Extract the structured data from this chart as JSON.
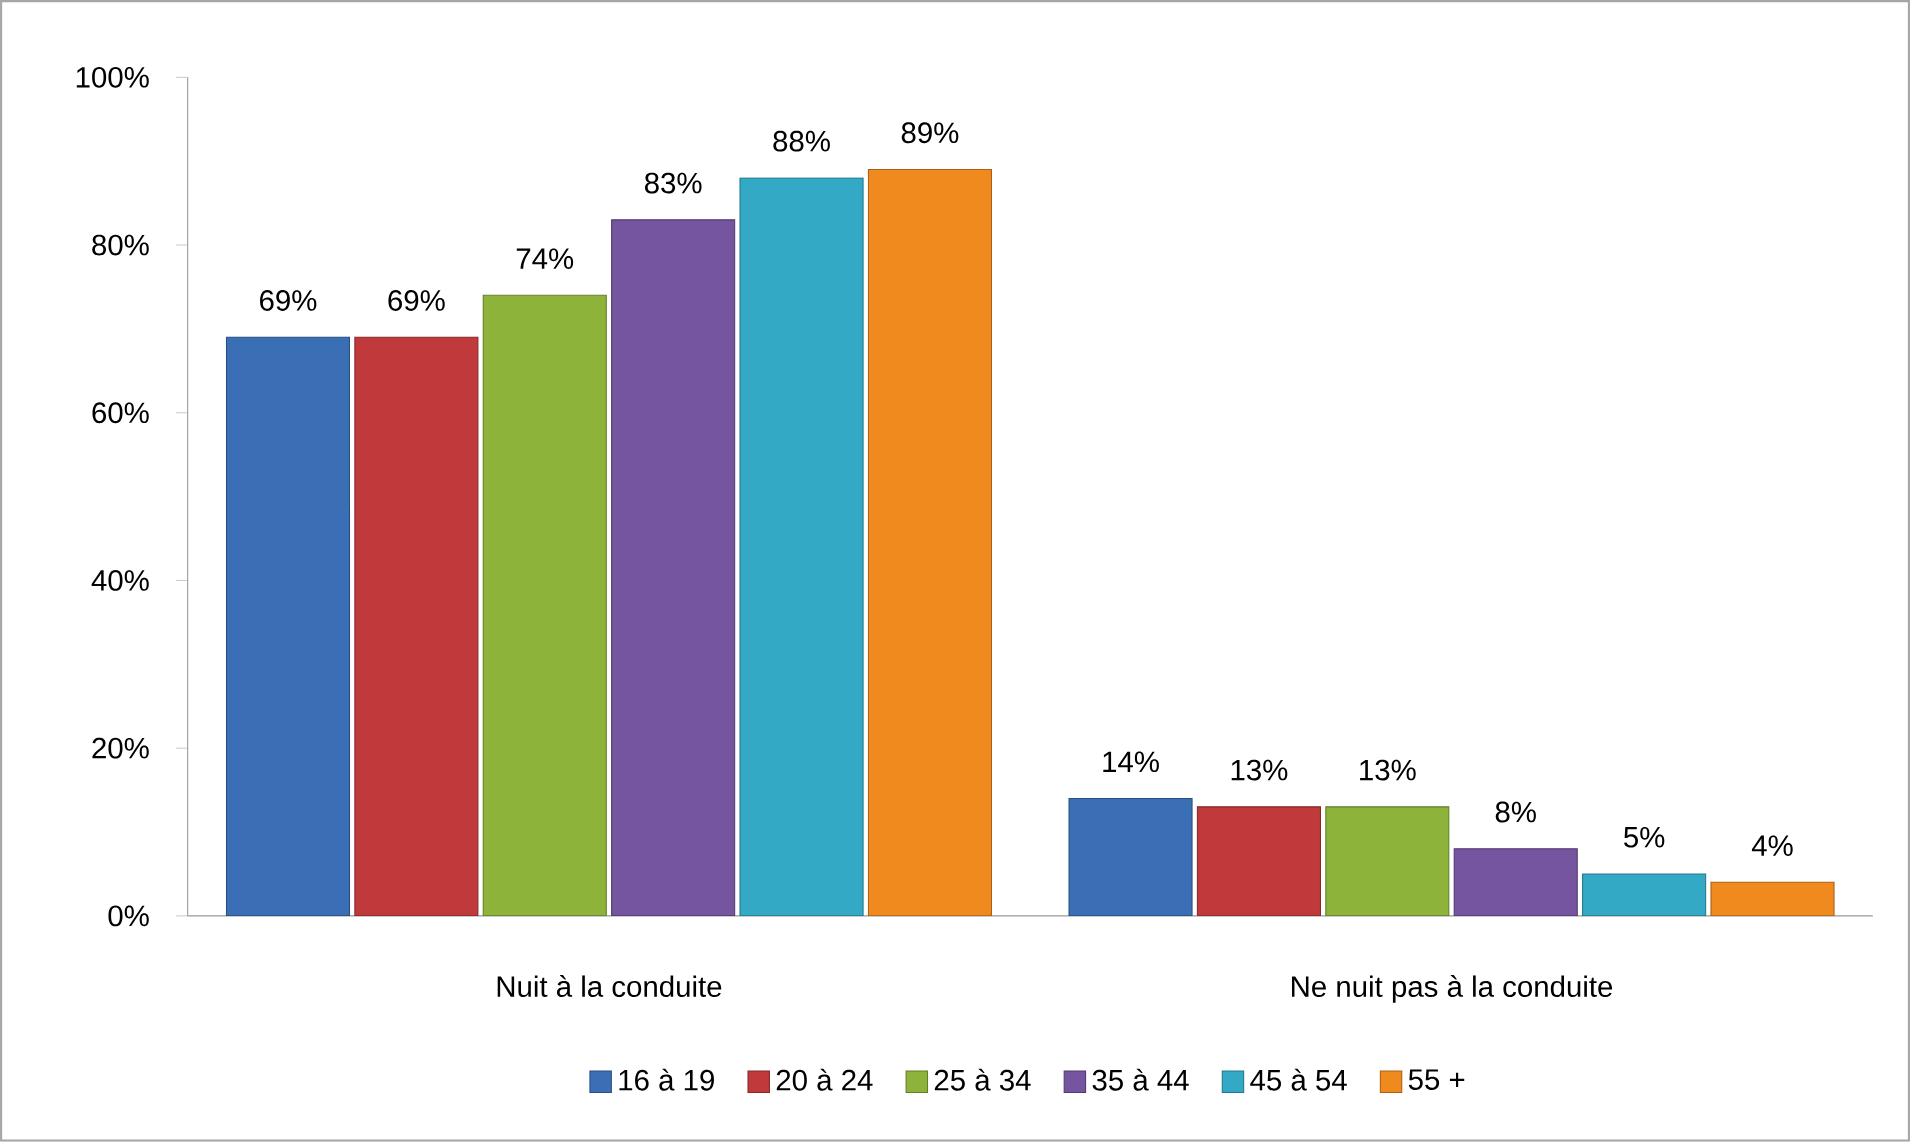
{
  "chart_data": {
    "type": "bar",
    "categories": [
      "Nuit à la conduite",
      "Ne nuit pas à la conduite"
    ],
    "series": [
      {
        "name": "16 à 19",
        "color": "#3a6fb5",
        "values": [
          69,
          14
        ],
        "value_labels": [
          "69%",
          "14%"
        ]
      },
      {
        "name": "20 à 24",
        "color": "#c0393b",
        "values": [
          69,
          13
        ],
        "value_labels": [
          "69%",
          "13%"
        ]
      },
      {
        "name": "25 à 34",
        "color": "#8db33b",
        "values": [
          74,
          13
        ],
        "value_labels": [
          "74%",
          "13%"
        ]
      },
      {
        "name": "35 à 44",
        "color": "#7554a0",
        "values": [
          83,
          8
        ],
        "value_labels": [
          "83%",
          "8%"
        ]
      },
      {
        "name": "45 à 54",
        "color": "#34a9c6",
        "values": [
          88,
          5
        ],
        "value_labels": [
          "88%",
          "5%"
        ]
      },
      {
        "name": "55 +",
        "color": "#f08a1f",
        "values": [
          89,
          4
        ],
        "value_labels": [
          "89%",
          "4%"
        ]
      }
    ],
    "ylim": [
      0,
      100
    ],
    "yticks": [
      {
        "value": 0,
        "label": "0%"
      },
      {
        "value": 20,
        "label": "20%"
      },
      {
        "value": 40,
        "label": "40%"
      },
      {
        "value": 60,
        "label": "60%"
      },
      {
        "value": 80,
        "label": "80%"
      },
      {
        "value": 100,
        "label": "100%"
      }
    ],
    "legend": "bottom"
  }
}
